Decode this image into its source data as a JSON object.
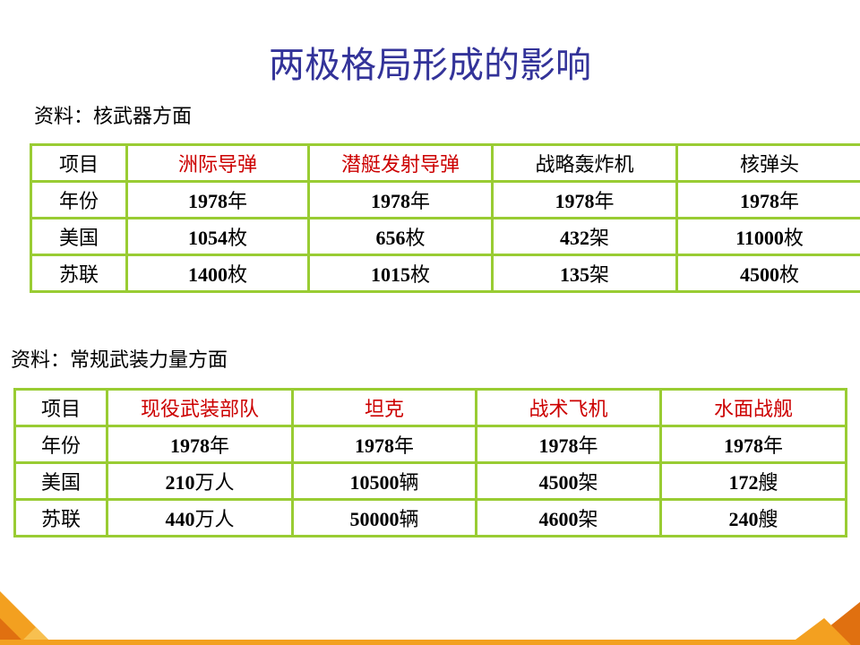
{
  "title": "两极格局形成的影响",
  "section1": {
    "label": "资料：核武器方面",
    "header": [
      "项目",
      "洲际导弹",
      "潜艇发射导弹",
      "战略轰炸机",
      "核弹头"
    ],
    "header_colors": [
      "#000000",
      "#cc0000",
      "#cc0000",
      "#000000",
      "#000000"
    ],
    "rows": [
      [
        "年份",
        "1978年",
        "1978年",
        "1978年",
        "1978年"
      ],
      [
        "美国",
        "1054枚",
        "656枚",
        "432架",
        "11000枚"
      ],
      [
        "苏联",
        "1400枚",
        "1015枚",
        "135架",
        "4500枚"
      ]
    ]
  },
  "section2": {
    "label": "资料：常规武装力量方面",
    "header": [
      "项目",
      "现役武装部队",
      "坦克",
      "战术飞机",
      "水面战舰"
    ],
    "header_colors": [
      "#000000",
      "#cc0000",
      "#cc0000",
      "#cc0000",
      "#cc0000"
    ],
    "rows": [
      [
        "年份",
        "1978年",
        "1978年",
        "1978年",
        "1978年"
      ],
      [
        "美国",
        "210万人",
        "10500辆",
        "4500架",
        "172艘"
      ],
      [
        "苏联",
        "440万人",
        "50000辆",
        "4600架",
        "240艘"
      ]
    ]
  }
}
